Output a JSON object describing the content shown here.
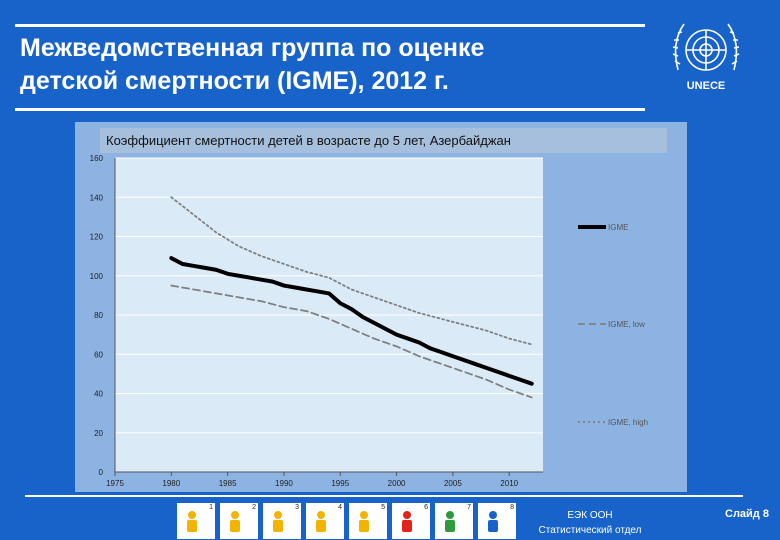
{
  "header": {
    "title_line1": "Межведомственная группа по оценке",
    "title_line2": "детской смертности (IGME), 2012 г."
  },
  "logo": {
    "text": "UNECE",
    "icon": "un-emblem-icon"
  },
  "colors": {
    "background": "#1763c9",
    "panel": "#8db3e2",
    "plot": "#dbeaf7"
  },
  "chart_data": {
    "type": "line",
    "title": "Коэффициент смертности детей в возрасте до 5 лет, Азербайджан",
    "x_ticks": [
      "1975",
      "1980",
      "1985",
      "1990",
      "1995",
      "2000",
      "2005",
      "2010"
    ],
    "y_ticks": [
      "0",
      "20",
      "40",
      "60",
      "80",
      "100",
      "120",
      "140",
      "160"
    ],
    "xlim": [
      1975,
      2013
    ],
    "ylim": [
      0,
      160
    ],
    "grid": "horizontal",
    "legend_position": "right",
    "series": [
      {
        "name": "IGME",
        "style": "solid",
        "color": "#000000",
        "x": [
          1980,
          1981,
          1982,
          1983,
          1984,
          1985,
          1986,
          1987,
          1988,
          1989,
          1990,
          1991,
          1992,
          1993,
          1994,
          1995,
          1996,
          1997,
          1998,
          1999,
          2000,
          2001,
          2002,
          2003,
          2004,
          2005,
          2006,
          2007,
          2008,
          2009,
          2010,
          2011,
          2012
        ],
        "y": [
          109,
          106,
          105,
          104,
          103,
          101,
          100,
          99,
          98,
          97,
          95,
          94,
          93,
          92,
          91,
          86,
          83,
          79,
          76,
          73,
          70,
          68,
          66,
          63,
          61,
          59,
          57,
          55,
          53,
          51,
          49,
          47,
          45
        ]
      },
      {
        "name": "IGME, low",
        "style": "dashed",
        "color": "#808080",
        "x": [
          1980,
          1982,
          1984,
          1986,
          1988,
          1990,
          1992,
          1994,
          1996,
          1998,
          2000,
          2002,
          2004,
          2006,
          2008,
          2010,
          2012
        ],
        "y": [
          95,
          93,
          91,
          89,
          87,
          84,
          82,
          78,
          73,
          68,
          64,
          59,
          55,
          51,
          47,
          42,
          38
        ]
      },
      {
        "name": "IGME, high",
        "style": "dotted",
        "color": "#808080",
        "x": [
          1980,
          1982,
          1984,
          1986,
          1988,
          1990,
          1992,
          1994,
          1996,
          1998,
          2000,
          2002,
          2004,
          2006,
          2008,
          2010,
          2012
        ],
        "y": [
          140,
          131,
          122,
          115,
          110,
          106,
          102,
          99,
          93,
          89,
          85,
          81,
          78,
          75,
          72,
          68,
          65
        ]
      }
    ]
  },
  "footer": {
    "mdg_icons": [
      {
        "num": "1",
        "icon": "bowl-icon"
      },
      {
        "num": "2",
        "icon": "pencil-icon"
      },
      {
        "num": "3",
        "icon": "gender-icon"
      },
      {
        "num": "4",
        "icon": "child-icon"
      },
      {
        "num": "5",
        "icon": "mother-icon"
      },
      {
        "num": "6",
        "icon": "medicine-icon"
      },
      {
        "num": "7",
        "icon": "plant-icon"
      },
      {
        "num": "8",
        "icon": "partnership-icon"
      }
    ],
    "org_line1": "ЕЭК ООН",
    "org_line2": "Статистический отдел",
    "slide_label": "Слайд 8"
  }
}
